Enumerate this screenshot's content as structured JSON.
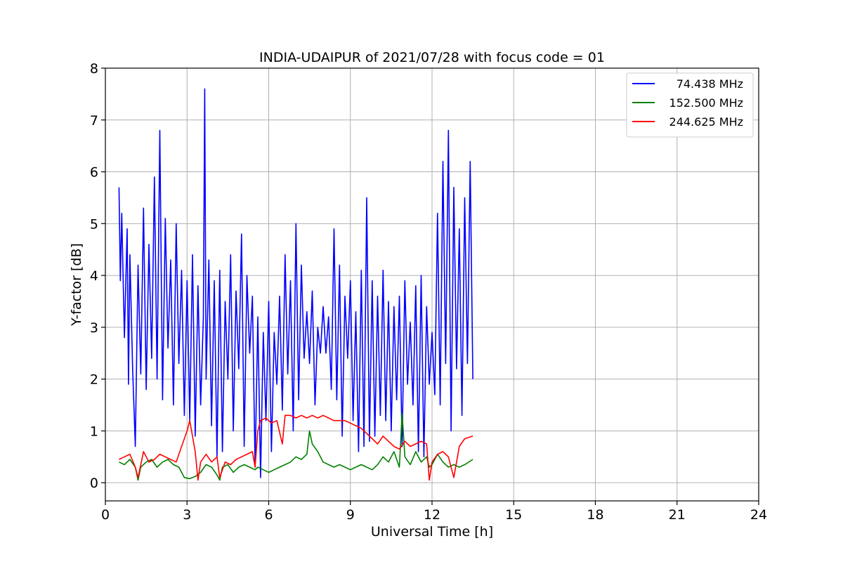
{
  "chart_data": {
    "type": "line",
    "title": "INDIA-UDAIPUR of 2021/07/28 with focus code = 01",
    "xlabel": "Universal Time [h]",
    "ylabel": "Y-factor [dB]",
    "xlim": [
      0,
      24
    ],
    "ylim": [
      -0.35,
      8
    ],
    "xticks": [
      0,
      3,
      6,
      9,
      12,
      15,
      18,
      21,
      24
    ],
    "yticks": [
      0,
      1,
      2,
      3,
      4,
      5,
      6,
      7,
      8
    ],
    "grid": true,
    "legend_position": "top-right",
    "series": [
      {
        "name": "74.438 MHz",
        "color": "#0000ff",
        "x": [
          0.5,
          0.55,
          0.6,
          0.7,
          0.8,
          0.85,
          0.9,
          1.0,
          1.1,
          1.2,
          1.3,
          1.4,
          1.5,
          1.6,
          1.7,
          1.8,
          1.9,
          2.0,
          2.1,
          2.2,
          2.3,
          2.4,
          2.5,
          2.6,
          2.7,
          2.8,
          2.9,
          3.0,
          3.1,
          3.2,
          3.3,
          3.4,
          3.5,
          3.6,
          3.65,
          3.7,
          3.8,
          3.9,
          4.0,
          4.1,
          4.2,
          4.3,
          4.4,
          4.5,
          4.6,
          4.7,
          4.8,
          4.9,
          5.0,
          5.1,
          5.2,
          5.3,
          5.4,
          5.5,
          5.6,
          5.7,
          5.8,
          5.9,
          6.0,
          6.1,
          6.2,
          6.3,
          6.4,
          6.5,
          6.6,
          6.7,
          6.8,
          6.9,
          7.0,
          7.1,
          7.2,
          7.3,
          7.4,
          7.5,
          7.6,
          7.7,
          7.8,
          7.9,
          8.0,
          8.1,
          8.2,
          8.3,
          8.4,
          8.5,
          8.6,
          8.7,
          8.8,
          8.9,
          9.0,
          9.1,
          9.2,
          9.3,
          9.4,
          9.5,
          9.6,
          9.7,
          9.8,
          9.9,
          10.0,
          10.1,
          10.2,
          10.3,
          10.4,
          10.5,
          10.6,
          10.7,
          10.8,
          10.9,
          11.0,
          11.1,
          11.2,
          11.3,
          11.4,
          11.5,
          11.6,
          11.7,
          11.8,
          11.9,
          12.0,
          12.1,
          12.2,
          12.3,
          12.4,
          12.5,
          12.6,
          12.7,
          12.8,
          12.9,
          13.0,
          13.1,
          13.2,
          13.3,
          13.4,
          13.5
        ],
        "y": [
          5.7,
          3.9,
          5.2,
          2.8,
          4.9,
          1.9,
          4.4,
          2.2,
          0.7,
          4.2,
          2.1,
          5.3,
          1.8,
          4.6,
          2.4,
          5.9,
          2.0,
          6.8,
          1.6,
          5.1,
          2.6,
          4.3,
          1.5,
          5.0,
          2.3,
          4.1,
          1.3,
          3.9,
          1.2,
          4.4,
          0.9,
          3.8,
          1.5,
          3.2,
          7.6,
          2.0,
          4.3,
          1.1,
          3.9,
          0.5,
          4.1,
          0.6,
          3.5,
          2.0,
          4.4,
          1.0,
          3.7,
          2.2,
          4.8,
          0.7,
          4.0,
          2.5,
          3.6,
          0.3,
          3.2,
          0.1,
          2.9,
          1.2,
          3.5,
          0.6,
          2.9,
          1.9,
          3.6,
          1.4,
          4.4,
          2.1,
          3.9,
          1.0,
          5.0,
          1.6,
          4.2,
          2.4,
          3.3,
          2.3,
          3.7,
          1.5,
          3.0,
          2.5,
          3.4,
          2.5,
          3.2,
          1.8,
          4.9,
          1.6,
          4.2,
          0.9,
          3.6,
          2.4,
          3.9,
          1.2,
          3.3,
          0.6,
          4.1,
          0.7,
          5.5,
          0.8,
          3.9,
          0.9,
          3.6,
          1.3,
          4.1,
          1.2,
          3.5,
          1.0,
          3.4,
          1.6,
          3.6,
          0.7,
          3.9,
          1.9,
          3.1,
          1.5,
          3.8,
          0.6,
          4.0,
          0.5,
          3.4,
          1.9,
          2.9,
          1.7,
          5.2,
          1.5,
          6.2,
          2.3,
          6.8,
          1.0,
          5.7,
          2.2,
          4.9,
          1.3,
          5.5,
          2.3,
          6.2,
          2.0
        ]
      },
      {
        "name": "152.500 MHz",
        "color": "#008000",
        "x": [
          0.5,
          0.7,
          0.9,
          1.1,
          1.2,
          1.3,
          1.5,
          1.7,
          1.9,
          2.1,
          2.3,
          2.5,
          2.7,
          2.9,
          3.1,
          3.3,
          3.5,
          3.7,
          3.9,
          4.1,
          4.2,
          4.3,
          4.5,
          4.7,
          4.9,
          5.1,
          5.3,
          5.5,
          5.6,
          5.8,
          6.0,
          6.2,
          6.4,
          6.6,
          6.8,
          7.0,
          7.2,
          7.4,
          7.5,
          7.6,
          7.8,
          8.0,
          8.2,
          8.4,
          8.6,
          8.8,
          9.0,
          9.2,
          9.4,
          9.6,
          9.8,
          10.0,
          10.2,
          10.4,
          10.6,
          10.8,
          10.9,
          11.0,
          11.2,
          11.4,
          11.6,
          11.8,
          11.9,
          12.0,
          12.2,
          12.4,
          12.6,
          12.8,
          13.0,
          13.2,
          13.5
        ],
        "y": [
          0.4,
          0.35,
          0.45,
          0.3,
          0.05,
          0.3,
          0.4,
          0.45,
          0.3,
          0.4,
          0.45,
          0.35,
          0.3,
          0.1,
          0.08,
          0.12,
          0.2,
          0.35,
          0.3,
          0.15,
          0.05,
          0.3,
          0.35,
          0.2,
          0.3,
          0.35,
          0.3,
          0.25,
          0.3,
          0.25,
          0.2,
          0.25,
          0.3,
          0.35,
          0.4,
          0.5,
          0.45,
          0.55,
          1.0,
          0.75,
          0.6,
          0.4,
          0.35,
          0.3,
          0.35,
          0.3,
          0.25,
          0.3,
          0.35,
          0.3,
          0.25,
          0.35,
          0.5,
          0.4,
          0.6,
          0.3,
          1.35,
          0.5,
          0.35,
          0.6,
          0.4,
          0.5,
          0.3,
          0.35,
          0.55,
          0.4,
          0.3,
          0.35,
          0.3,
          0.35,
          0.45
        ]
      },
      {
        "name": "244.625 MHz",
        "color": "#ff0000",
        "x": [
          0.5,
          0.7,
          0.9,
          1.1,
          1.2,
          1.4,
          1.6,
          1.8,
          2.0,
          2.2,
          2.4,
          2.6,
          2.8,
          3.0,
          3.1,
          3.3,
          3.4,
          3.5,
          3.7,
          3.9,
          4.1,
          4.2,
          4.4,
          4.6,
          4.8,
          5.0,
          5.2,
          5.4,
          5.5,
          5.6,
          5.7,
          5.9,
          6.1,
          6.3,
          6.5,
          6.6,
          6.8,
          7.0,
          7.2,
          7.4,
          7.6,
          7.8,
          8.0,
          8.2,
          8.4,
          8.6,
          8.8,
          9.0,
          9.2,
          9.4,
          9.6,
          9.8,
          10.0,
          10.2,
          10.4,
          10.6,
          10.8,
          11.0,
          11.2,
          11.4,
          11.6,
          11.8,
          11.9,
          12.0,
          12.2,
          12.4,
          12.6,
          12.8,
          13.0,
          13.2,
          13.5
        ],
        "y": [
          0.45,
          0.5,
          0.55,
          0.3,
          0.1,
          0.6,
          0.4,
          0.45,
          0.55,
          0.5,
          0.45,
          0.4,
          0.7,
          1.0,
          1.2,
          0.6,
          0.05,
          0.4,
          0.55,
          0.4,
          0.5,
          0.1,
          0.4,
          0.35,
          0.45,
          0.5,
          0.55,
          0.6,
          0.3,
          1.0,
          1.2,
          1.25,
          1.15,
          1.2,
          0.75,
          1.3,
          1.3,
          1.25,
          1.3,
          1.25,
          1.3,
          1.25,
          1.3,
          1.25,
          1.2,
          1.2,
          1.2,
          1.15,
          1.1,
          1.05,
          0.95,
          0.85,
          0.75,
          0.9,
          0.8,
          0.7,
          0.65,
          0.8,
          0.7,
          0.75,
          0.8,
          0.75,
          0.05,
          0.4,
          0.55,
          0.6,
          0.5,
          0.1,
          0.7,
          0.85,
          0.9
        ]
      }
    ]
  }
}
